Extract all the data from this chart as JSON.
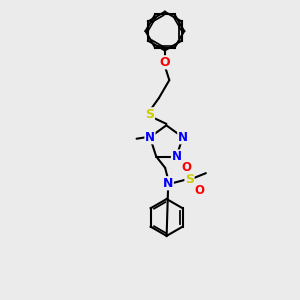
{
  "bg_color": "#ebebeb",
  "bond_color": "black",
  "atom_colors": {
    "N": "blue",
    "O": "red",
    "S": "#cccc00",
    "C": "black"
  },
  "line_width": 1.5,
  "font_size": 8.5
}
